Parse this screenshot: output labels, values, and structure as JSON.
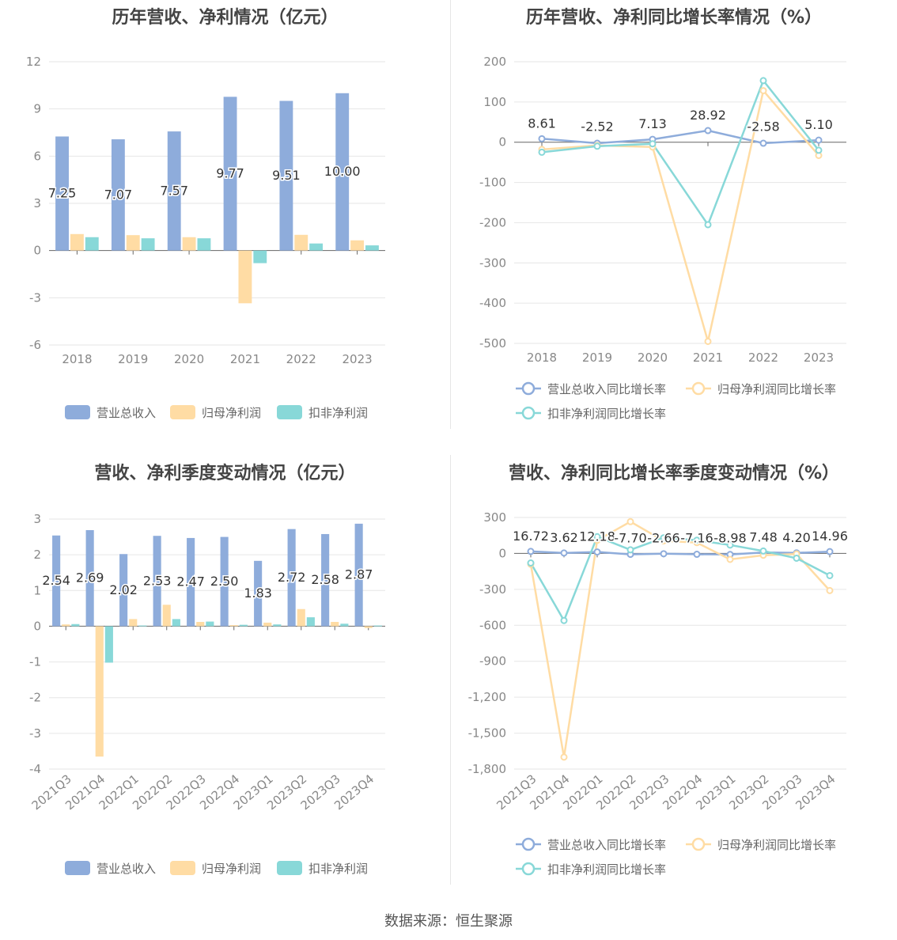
{
  "footer": "数据来源：恒生聚源",
  "colors": {
    "revenue": "#8eacdb",
    "net_profit": "#ffdca4",
    "deducted": "#88d8d8",
    "grid": "#e6e6e6",
    "axis": "#666666",
    "tick": "#888888",
    "label": "#333333"
  },
  "chart_data": [
    {
      "id": "annual-amount",
      "type": "bar",
      "title": "历年营收、净利情况（亿元）",
      "categories": [
        "2018",
        "2019",
        "2020",
        "2021",
        "2022",
        "2023"
      ],
      "ylim": [
        -6,
        12
      ],
      "yticks": [
        12,
        9,
        6,
        3,
        0,
        -3,
        -6
      ],
      "ytick_labels": [
        "12",
        "9",
        "6",
        "3",
        "0",
        "-3",
        "-6"
      ],
      "grid": true,
      "legend": "bottom",
      "series": [
        {
          "name": "营业总收入",
          "values": [
            7.25,
            7.07,
            7.57,
            9.77,
            9.51,
            10.0
          ],
          "labels": [
            "7.25",
            "7.07",
            "7.57",
            "9.77",
            "9.51",
            "10.00"
          ]
        },
        {
          "name": "归母净利润",
          "values": [
            1.05,
            0.98,
            0.85,
            -3.35,
            1.0,
            0.65
          ]
        },
        {
          "name": "扣非净利润",
          "values": [
            0.85,
            0.78,
            0.78,
            -0.8,
            0.45,
            0.33
          ]
        }
      ]
    },
    {
      "id": "annual-growth",
      "type": "line",
      "title": "历年营收、净利同比增长率情况（%）",
      "categories": [
        "2018",
        "2019",
        "2020",
        "2021",
        "2022",
        "2023"
      ],
      "ylim": [
        -500,
        200
      ],
      "yticks": [
        200,
        100,
        0,
        -100,
        -200,
        -300,
        -400,
        -500
      ],
      "ytick_labels": [
        "200",
        "100",
        "0",
        "-100",
        "-200",
        "-300",
        "-400",
        "-500"
      ],
      "grid": true,
      "legend": "bottom",
      "series": [
        {
          "name": "营业总收入同比增长率",
          "values": [
            8.61,
            -2.52,
            7.13,
            28.92,
            -2.58,
            5.1
          ],
          "labels": [
            "8.61",
            "-2.52",
            "7.13",
            "28.92",
            "-2.58",
            "5.10"
          ]
        },
        {
          "name": "归母净利润同比增长率",
          "values": [
            -18,
            -8,
            -12,
            -495,
            128,
            -33
          ]
        },
        {
          "name": "扣非净利润同比增长率",
          "values": [
            -25,
            -10,
            -4,
            -205,
            153,
            -20
          ]
        }
      ]
    },
    {
      "id": "quarterly-amount",
      "type": "bar",
      "title": "营收、净利季度变动情况（亿元）",
      "categories": [
        "2021Q3",
        "2021Q4",
        "2022Q1",
        "2022Q2",
        "2022Q3",
        "2022Q4",
        "2023Q1",
        "2023Q2",
        "2023Q3",
        "2023Q4"
      ],
      "ylim": [
        -4,
        3
      ],
      "yticks": [
        3,
        2,
        1,
        0,
        -1,
        -2,
        -3,
        -4
      ],
      "ytick_labels": [
        "3",
        "2",
        "1",
        "0",
        "-1",
        "-2",
        "-3",
        "-4"
      ],
      "grid": true,
      "legend": "bottom",
      "series": [
        {
          "name": "营业总收入",
          "values": [
            2.54,
            2.69,
            2.02,
            2.53,
            2.47,
            2.5,
            1.83,
            2.72,
            2.58,
            2.87
          ],
          "labels": [
            "2.54",
            "2.69",
            "2.02",
            "2.53",
            "2.47",
            "2.50",
            "1.83",
            "2.72",
            "2.58",
            "2.87"
          ]
        },
        {
          "name": "归母净利润",
          "values": [
            0.05,
            -3.65,
            0.2,
            0.6,
            0.12,
            0.03,
            0.1,
            0.48,
            0.12,
            -0.05
          ]
        },
        {
          "name": "扣非净利润",
          "values": [
            0.06,
            -1.02,
            0.02,
            0.2,
            0.13,
            0.04,
            0.05,
            0.25,
            0.07,
            0.02
          ]
        }
      ]
    },
    {
      "id": "quarterly-growth",
      "type": "line",
      "title": "营收、净利同比增长率季度变动情况（%）",
      "categories": [
        "2021Q3",
        "2021Q4",
        "2022Q1",
        "2022Q2",
        "2022Q3",
        "2022Q4",
        "2023Q1",
        "2023Q2",
        "2023Q3",
        "2023Q4"
      ],
      "ylim": [
        -1800,
        300
      ],
      "yticks": [
        300,
        0,
        -300,
        -600,
        -900,
        -1200,
        -1500,
        -1800
      ],
      "ytick_labels": [
        "300",
        "0",
        "-300",
        "-600",
        "-900",
        "-1,200",
        "-1,500",
        "-1,800"
      ],
      "grid": true,
      "legend": "bottom",
      "series": [
        {
          "name": "营业总收入同比增长率",
          "values": [
            16.72,
            3.62,
            12.18,
            -7.7,
            -2.66,
            -7.16,
            -8.98,
            7.48,
            4.2,
            14.96
          ],
          "labels": [
            "16.72",
            "3.62",
            "12.18",
            "-7.70",
            "-2.66",
            "-7.16",
            "-8.98",
            "7.48",
            "4.20",
            "14.96"
          ]
        },
        {
          "name": "归母净利润同比增长率",
          "values": [
            -90,
            -1700,
            110,
            265,
            105,
            90,
            -50,
            -15,
            -5,
            -310
          ]
        },
        {
          "name": "扣非净利润同比增长率",
          "values": [
            -80,
            -560,
            140,
            30,
            130,
            110,
            70,
            20,
            -40,
            -185
          ]
        }
      ]
    }
  ]
}
